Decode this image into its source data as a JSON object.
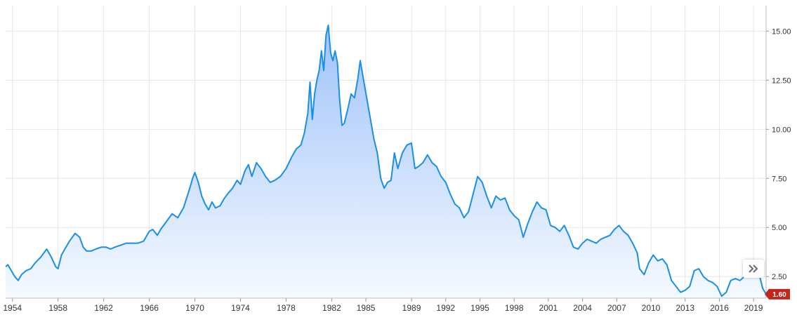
{
  "chart_data": {
    "type": "area",
    "title": "",
    "xlabel": "",
    "ylabel": "",
    "xlim": [
      1953.4,
      2020.1
    ],
    "ylim": [
      1.4,
      16.3
    ],
    "x_ticks": [
      "1954",
      "1958",
      "1962",
      "1966",
      "1970",
      "1974",
      "1978",
      "1982",
      "1985",
      "1989",
      "1992",
      "1995",
      "1998",
      "2001",
      "2004",
      "2007",
      "2010",
      "2013",
      "2016",
      "2019"
    ],
    "y_ticks": [
      "2.50",
      "5.00",
      "7.50",
      "10.00",
      "12.50",
      "15.00"
    ],
    "grid": true,
    "legend": "none",
    "line_color": "#1a8fe8",
    "fill_top_color": "#9fc3fa",
    "fill_bottom_color": "#f5f9ff",
    "last_value_label": "1.60",
    "last_value_color": "#c0281e",
    "series": [
      {
        "x": [
          1953.4,
          1953.6,
          1953.9,
          1954.2,
          1954.5,
          1954.8,
          1955.2,
          1955.6,
          1956.0,
          1956.5,
          1957.0,
          1957.4,
          1957.8,
          1958.0,
          1958.3,
          1958.6,
          1959.0,
          1959.5,
          1959.9,
          1960.2,
          1960.5,
          1960.9,
          1961.3,
          1961.8,
          1962.2,
          1962.6,
          1963.0,
          1963.5,
          1964.0,
          1964.5,
          1965.0,
          1965.5,
          1966.0,
          1966.3,
          1966.7,
          1967.0,
          1967.5,
          1968.0,
          1968.5,
          1969.0,
          1969.5,
          1969.8,
          1970.0,
          1970.3,
          1970.6,
          1970.9,
          1971.2,
          1971.5,
          1971.8,
          1972.2,
          1972.6,
          1973.0,
          1973.3,
          1973.7,
          1974.0,
          1974.4,
          1974.7,
          1975.0,
          1975.4,
          1975.8,
          1976.2,
          1976.6,
          1977.0,
          1977.5,
          1978.0,
          1978.5,
          1978.9,
          1979.3,
          1979.6,
          1979.9,
          1980.1,
          1980.3,
          1980.5,
          1980.7,
          1980.9,
          1981.1,
          1981.3,
          1981.5,
          1981.7,
          1981.9,
          1982.1,
          1982.3,
          1982.5,
          1982.7,
          1982.9,
          1983.1,
          1983.4,
          1983.7,
          1984.0,
          1984.3,
          1984.5,
          1984.8,
          1985.1,
          1985.4,
          1985.7,
          1986.0,
          1986.3,
          1986.6,
          1986.9,
          1987.2,
          1987.5,
          1987.8,
          1988.2,
          1988.6,
          1989.0,
          1989.3,
          1989.6,
          1990.0,
          1990.4,
          1990.8,
          1991.2,
          1991.6,
          1992.0,
          1992.4,
          1992.8,
          1993.2,
          1993.6,
          1994.0,
          1994.4,
          1994.8,
          1995.2,
          1995.6,
          1996.0,
          1996.4,
          1996.8,
          1997.2,
          1997.6,
          1998.0,
          1998.4,
          1998.8,
          1999.2,
          1999.6,
          2000.0,
          2000.4,
          2000.8,
          2001.2,
          2001.6,
          2002.0,
          2002.4,
          2002.8,
          2003.2,
          2003.6,
          2004.0,
          2004.4,
          2004.8,
          2005.2,
          2005.6,
          2006.0,
          2006.4,
          2006.8,
          2007.2,
          2007.6,
          2008.0,
          2008.4,
          2008.8,
          2009.0,
          2009.4,
          2009.8,
          2010.2,
          2010.6,
          2011.0,
          2011.4,
          2011.8,
          2012.2,
          2012.6,
          2013.0,
          2013.4,
          2013.8,
          2014.2,
          2014.6,
          2015.0,
          2015.4,
          2015.8,
          2016.2,
          2016.6,
          2017.0,
          2017.4,
          2017.8,
          2018.2,
          2018.6,
          2018.9,
          2019.2,
          2019.5,
          2019.8,
          2020.1
        ],
        "values": [
          3.0,
          3.1,
          2.8,
          2.5,
          2.3,
          2.6,
          2.8,
          2.9,
          3.2,
          3.5,
          3.9,
          3.5,
          3.0,
          2.9,
          3.6,
          3.9,
          4.3,
          4.7,
          4.5,
          4.0,
          3.8,
          3.8,
          3.9,
          4.0,
          4.0,
          3.9,
          4.0,
          4.1,
          4.2,
          4.2,
          4.2,
          4.3,
          4.8,
          4.9,
          4.6,
          4.9,
          5.3,
          5.7,
          5.5,
          6.0,
          6.9,
          7.5,
          7.8,
          7.3,
          6.6,
          6.2,
          5.9,
          6.3,
          6.0,
          6.1,
          6.5,
          6.8,
          7.0,
          7.4,
          7.2,
          7.9,
          8.2,
          7.6,
          8.3,
          8.0,
          7.6,
          7.3,
          7.4,
          7.6,
          8.0,
          8.6,
          9.0,
          9.2,
          9.8,
          10.8,
          12.4,
          10.5,
          11.8,
          12.5,
          13.0,
          14.0,
          13.0,
          14.8,
          15.3,
          13.9,
          13.5,
          14.0,
          13.4,
          11.5,
          10.2,
          10.3,
          11.0,
          11.8,
          11.6,
          12.6,
          13.5,
          12.5,
          11.5,
          10.5,
          9.5,
          8.8,
          7.5,
          7.0,
          7.3,
          7.4,
          8.8,
          8.0,
          8.8,
          9.2,
          9.3,
          8.0,
          8.1,
          8.3,
          8.7,
          8.3,
          8.1,
          7.6,
          7.3,
          6.7,
          6.2,
          6.0,
          5.5,
          5.8,
          6.7,
          7.6,
          7.3,
          6.6,
          6.0,
          6.6,
          6.4,
          6.5,
          5.9,
          5.6,
          5.4,
          4.5,
          5.2,
          5.8,
          6.3,
          6.0,
          5.9,
          5.1,
          5.0,
          4.8,
          5.1,
          4.6,
          4.0,
          3.9,
          4.2,
          4.4,
          4.3,
          4.2,
          4.4,
          4.5,
          4.6,
          4.9,
          5.1,
          4.8,
          4.6,
          4.2,
          3.7,
          2.9,
          2.6,
          3.2,
          3.6,
          3.3,
          3.4,
          3.1,
          2.3,
          2.0,
          1.7,
          1.8,
          2.0,
          2.8,
          2.9,
          2.5,
          2.3,
          2.2,
          2.0,
          1.5,
          1.7,
          2.3,
          2.4,
          2.3,
          2.5,
          2.7,
          3.0,
          3.2,
          2.6,
          1.9,
          1.6
        ]
      }
    ]
  }
}
